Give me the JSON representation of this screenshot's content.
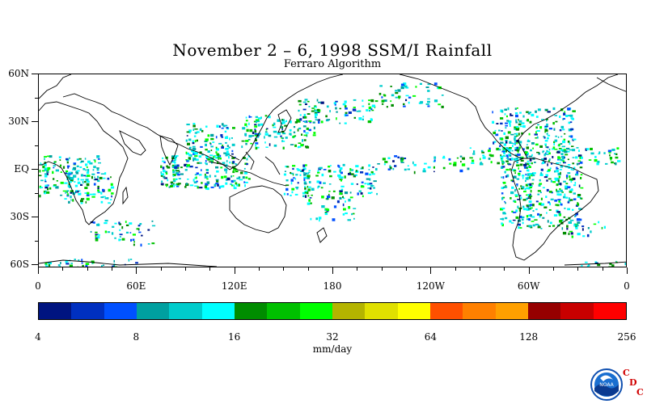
{
  "title": "November 2 – 6, 1998 SSM/I Rainfall",
  "subtitle": "Ferraro Algorithm",
  "lat_labels": [
    "60N",
    "30N",
    "EQ",
    "30S",
    "60S"
  ],
  "lon_labels": [
    "0",
    "60E",
    "120E",
    "180",
    "120W",
    "60W",
    "0"
  ],
  "colorbar": {
    "colors": [
      "#001480",
      "#0030c0",
      "#0050ff",
      "#00a0a0",
      "#00cccc",
      "#00ffff",
      "#008c00",
      "#00c000",
      "#00ff00",
      "#b4b400",
      "#e0e000",
      "#ffff00",
      "#ff5000",
      "#ff8000",
      "#ffa000",
      "#960000",
      "#c80000",
      "#ff0000"
    ],
    "tick_labels": [
      "4",
      "8",
      "16",
      "32",
      "64",
      "128",
      "256"
    ],
    "units": "mm/day"
  },
  "logo": {
    "name": "NOAA",
    "cdc": [
      "C",
      "D",
      "C"
    ]
  }
}
